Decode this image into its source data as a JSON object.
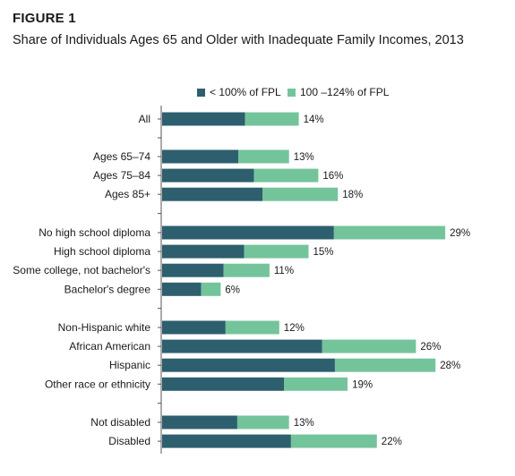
{
  "header": {
    "figure_label": "FIGURE 1",
    "title": "Share of Individuals Ages 65 and Older with Inadequate Family Incomes, 2013"
  },
  "colors": {
    "below_100": "#2d5f6e",
    "between_100_124": "#74c49b",
    "axis": "#555555"
  },
  "chart_data": {
    "type": "bar",
    "orientation": "horizontal",
    "stacked": true,
    "title": "Share of Individuals Ages 65 and Older with Inadequate Family Incomes, 2013",
    "legend_position": "top",
    "grid": false,
    "series": [
      {
        "name": "< 100% of FPL",
        "color": "#2d5f6e",
        "values": [
          8.5,
          7.8,
          9.4,
          10.3,
          17.6,
          8.4,
          6.3,
          4.0,
          6.5,
          16.4,
          17.7,
          12.5,
          7.7,
          13.2
        ]
      },
      {
        "name": "100 –124% of FPL",
        "color": "#74c49b",
        "values": [
          5.5,
          5.2,
          6.6,
          7.7,
          11.4,
          6.6,
          4.7,
          2.0,
          5.5,
          9.6,
          10.3,
          6.5,
          5.3,
          8.8
        ]
      }
    ],
    "groups": [
      {
        "categories": [
          "All"
        ],
        "totals": [
          "14%"
        ],
        "idx": [
          0
        ]
      },
      {
        "categories": [
          "Ages 65–74",
          "Ages 75–84",
          "Ages 85+"
        ],
        "totals": [
          "13%",
          "16%",
          "18%"
        ],
        "idx": [
          1,
          2,
          3
        ]
      },
      {
        "categories": [
          "No high school diploma",
          "High school diploma",
          "Some college, not bachelor's",
          "Bachelor's degree"
        ],
        "totals": [
          "29%",
          "15%",
          "11%",
          "6%"
        ],
        "idx": [
          4,
          5,
          6,
          7
        ]
      },
      {
        "categories": [
          "Non-Hispanic white",
          "African American",
          "Hispanic",
          "Other race or ethnicity"
        ],
        "totals": [
          "12%",
          "26%",
          "28%",
          "19%"
        ],
        "idx": [
          8,
          9,
          10,
          11
        ]
      },
      {
        "categories": [
          "Not disabled",
          "Disabled"
        ],
        "totals": [
          "13%",
          "22%"
        ],
        "idx": [
          12,
          13
        ]
      }
    ],
    "xlim": [
      0,
      30
    ]
  }
}
